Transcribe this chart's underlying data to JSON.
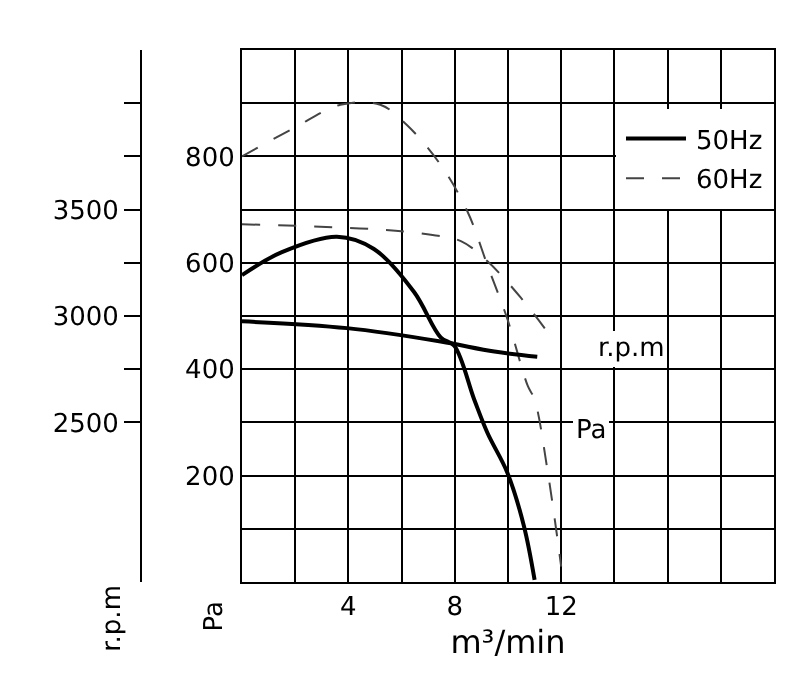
{
  "chart_data": {
    "type": "line",
    "xlabel": "m³/min",
    "ylabel": "Pa",
    "y2label": "r.p.m",
    "xlim": [
      0,
      20
    ],
    "xticks": [
      {
        "value": 0,
        "label": null
      },
      {
        "value": 2,
        "label": null
      },
      4,
      {
        "value": 6,
        "label": null
      },
      8,
      {
        "value": 10,
        "label": null
      },
      12,
      {
        "value": 14,
        "label": null
      },
      {
        "value": 16,
        "label": null
      },
      {
        "value": 18,
        "label": null
      },
      {
        "value": 20,
        "label": null
      }
    ],
    "ylim": [
      0,
      1000
    ],
    "yticks": [
      {
        "value": 0,
        "label": null
      },
      {
        "value": 100,
        "label": null
      },
      200,
      {
        "value": 300,
        "label": null
      },
      400,
      {
        "value": 500,
        "label": null
      },
      600,
      {
        "value": 700,
        "label": null
      },
      800,
      {
        "value": 900,
        "label": null
      },
      {
        "value": 1000,
        "label": null
      }
    ],
    "y2lim": [
      1750,
      4250
    ],
    "y2ticks": [
      2500,
      {
        "value": 2750,
        "label": null
      },
      3000,
      {
        "value": 3250,
        "label": null
      },
      3500,
      {
        "value": 3750,
        "label": null
      },
      {
        "value": 4000,
        "label": null
      }
    ],
    "grid": true,
    "legend": "top right",
    "marker": "none",
    "series": [
      {
        "name": "50Hz",
        "color": "#000000",
        "line_style": "solid",
        "x": [
          0,
          1.5,
          3.57,
          4.96,
          6.47,
          7.47,
          7.98,
          8.73,
          9.23,
          9.98,
          10.6,
          11.0
        ],
        "values": [
          577,
          620,
          649,
          626,
          545,
          460,
          444,
          343,
          280,
          205,
          105,
          4
        ]
      },
      {
        "color": "#000000",
        "line_style": "solid",
        "axis": "y2",
        "x": [
          0,
          3.95,
          7.47,
          9.49,
          11.1
        ],
        "values": [
          2975,
          2943,
          2880,
          2833,
          2809
        ]
      },
      {
        "name": "60Hz",
        "color": "#444444",
        "line_style": "dashed",
        "x": [
          0,
          1.94,
          3.7,
          5.2,
          6.2,
          7.47,
          8.48,
          9.23,
          9.98,
          10.74,
          11.0,
          11.5,
          12.0
        ],
        "values": [
          800,
          853,
          897,
          897,
          859,
          784,
          696,
          595,
          494,
          369,
          343,
          205,
          29
        ]
      },
      {
        "color": "#444444",
        "line_style": "dashed",
        "axis": "y2",
        "x": [
          0,
          4.96,
          6.97,
          8.23,
          9.23,
          10.49,
          11.75
        ],
        "values": [
          3431,
          3408,
          3384,
          3352,
          3257,
          3085,
          2880
        ]
      }
    ],
    "annotations": [
      {
        "text": "r.p.m",
        "x": 14.6,
        "y": 438
      },
      {
        "text": "Pa",
        "x": 13.1,
        "y": 283
      }
    ]
  }
}
